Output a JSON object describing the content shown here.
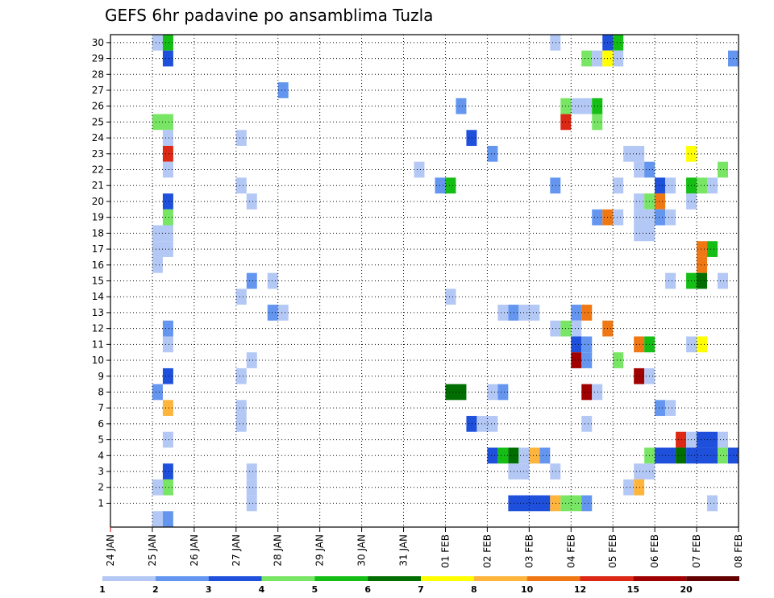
{
  "chart_data": {
    "type": "heatmap",
    "title": "GEFS 6hr padavine po ansamblima Tuzla",
    "xlabel": "",
    "ylabel": "",
    "x_tick_labels": [
      "24 JAN",
      "25 JAN",
      "26 JAN",
      "27 JAN",
      "28 JAN",
      "29 JAN",
      "30 JAN",
      "31 JAN",
      "01 FEB",
      "02 FEB",
      "03 FEB",
      "04 FEB",
      "05 FEB",
      "06 FEB",
      "07 FEB",
      "08 FEB"
    ],
    "x_range_days": [
      0,
      15
    ],
    "y_range": [
      0,
      30
    ],
    "y_ticks": [
      1,
      2,
      3,
      4,
      5,
      6,
      7,
      8,
      9,
      10,
      11,
      12,
      13,
      14,
      15,
      16,
      17,
      18,
      19,
      20,
      21,
      22,
      23,
      24,
      25,
      26,
      27,
      28,
      29,
      30
    ],
    "grid": true,
    "colorbar": {
      "labels": [
        "1",
        "2",
        "3",
        "4",
        "5",
        "6",
        "7",
        "8",
        "10",
        "12",
        "15",
        "20"
      ],
      "colors": [
        "#b4c8f5",
        "#6496f0",
        "#1e50dc",
        "#78e664",
        "#14be14",
        "#006e00",
        "#ffff00",
        "#ffb43c",
        "#f07814",
        "#dc2814",
        "#a00000",
        "#640000"
      ]
    },
    "cells_note": "each cell: [member (y), time step start in days from 24 JAN, duration in days, level index into colorbar.colors]",
    "cells": [
      [
        30,
        1.0,
        0.25,
        0
      ],
      [
        30,
        1.25,
        0.25,
        4
      ],
      [
        30,
        10.5,
        0.25,
        0
      ],
      [
        30,
        11.75,
        0.25,
        2
      ],
      [
        30,
        12.0,
        0.25,
        4
      ],
      [
        29,
        1.25,
        0.25,
        2
      ],
      [
        29,
        11.25,
        0.25,
        3
      ],
      [
        29,
        11.5,
        0.25,
        0
      ],
      [
        29,
        11.75,
        0.25,
        6
      ],
      [
        29,
        12.0,
        0.25,
        0
      ],
      [
        29,
        14.75,
        0.25,
        1
      ],
      [
        27,
        4.0,
        0.25,
        1
      ],
      [
        26,
        8.25,
        0.25,
        1
      ],
      [
        26,
        10.75,
        0.25,
        3
      ],
      [
        26,
        11.0,
        0.5,
        0
      ],
      [
        26,
        11.5,
        0.25,
        4
      ],
      [
        25,
        1.0,
        0.5,
        3
      ],
      [
        25,
        10.75,
        0.25,
        9
      ],
      [
        25,
        11.5,
        0.25,
        3
      ],
      [
        24,
        1.25,
        0.25,
        0
      ],
      [
        24,
        3.0,
        0.25,
        0
      ],
      [
        24,
        8.5,
        0.25,
        2
      ],
      [
        23,
        1.25,
        0.25,
        9
      ],
      [
        23,
        9.0,
        0.25,
        1
      ],
      [
        23,
        12.25,
        0.5,
        0
      ],
      [
        23,
        13.75,
        0.25,
        6
      ],
      [
        22,
        1.25,
        0.25,
        0
      ],
      [
        22,
        7.25,
        0.25,
        0
      ],
      [
        22,
        12.5,
        0.25,
        0
      ],
      [
        22,
        12.75,
        0.25,
        1
      ],
      [
        22,
        14.5,
        0.25,
        3
      ],
      [
        21,
        3.0,
        0.25,
        0
      ],
      [
        21,
        7.75,
        0.25,
        1
      ],
      [
        21,
        8.0,
        0.25,
        4
      ],
      [
        21,
        10.5,
        0.25,
        1
      ],
      [
        21,
        12.0,
        0.25,
        0
      ],
      [
        21,
        13.0,
        0.25,
        2
      ],
      [
        21,
        13.25,
        0.25,
        0
      ],
      [
        21,
        13.75,
        0.25,
        4
      ],
      [
        21,
        14.0,
        0.25,
        3
      ],
      [
        21,
        14.25,
        0.25,
        0
      ],
      [
        20,
        1.25,
        0.25,
        2
      ],
      [
        20,
        3.25,
        0.25,
        0
      ],
      [
        20,
        12.5,
        0.25,
        0
      ],
      [
        20,
        12.75,
        0.25,
        3
      ],
      [
        20,
        13.0,
        0.25,
        8
      ],
      [
        20,
        13.75,
        0.25,
        0
      ],
      [
        19,
        1.25,
        0.25,
        3
      ],
      [
        19,
        11.5,
        0.25,
        1
      ],
      [
        19,
        11.75,
        0.25,
        8
      ],
      [
        19,
        12.0,
        0.25,
        0
      ],
      [
        19,
        12.5,
        0.5,
        0
      ],
      [
        19,
        13.0,
        0.25,
        1
      ],
      [
        19,
        13.25,
        0.25,
        0
      ],
      [
        18,
        1.0,
        0.5,
        0
      ],
      [
        18,
        12.5,
        0.5,
        0
      ],
      [
        17,
        1.0,
        0.5,
        0
      ],
      [
        17,
        14.0,
        0.25,
        8
      ],
      [
        17,
        14.25,
        0.25,
        4
      ],
      [
        16,
        1.0,
        0.25,
        0
      ],
      [
        16,
        14.0,
        0.25,
        8
      ],
      [
        15,
        3.25,
        0.25,
        1
      ],
      [
        15,
        3.75,
        0.25,
        0
      ],
      [
        15,
        13.25,
        0.25,
        0
      ],
      [
        15,
        13.75,
        0.25,
        4
      ],
      [
        15,
        14.0,
        0.25,
        5
      ],
      [
        15,
        14.5,
        0.25,
        0
      ],
      [
        14,
        3.0,
        0.25,
        0
      ],
      [
        14,
        8.0,
        0.25,
        0
      ],
      [
        13,
        3.75,
        0.25,
        1
      ],
      [
        13,
        4.0,
        0.25,
        0
      ],
      [
        13,
        9.25,
        0.25,
        0
      ],
      [
        13,
        9.5,
        0.25,
        1
      ],
      [
        13,
        9.75,
        0.5,
        0
      ],
      [
        13,
        11.0,
        0.25,
        1
      ],
      [
        13,
        11.25,
        0.25,
        8
      ],
      [
        12,
        1.25,
        0.25,
        1
      ],
      [
        12,
        10.5,
        0.25,
        0
      ],
      [
        12,
        10.75,
        0.25,
        3
      ],
      [
        12,
        11.0,
        0.25,
        0
      ],
      [
        12,
        11.75,
        0.25,
        8
      ],
      [
        11,
        1.25,
        0.25,
        0
      ],
      [
        11,
        11.0,
        0.25,
        2
      ],
      [
        11,
        11.25,
        0.25,
        1
      ],
      [
        11,
        12.5,
        0.25,
        8
      ],
      [
        11,
        12.75,
        0.25,
        4
      ],
      [
        11,
        13.75,
        0.25,
        0
      ],
      [
        11,
        14.0,
        0.25,
        6
      ],
      [
        10,
        3.25,
        0.25,
        0
      ],
      [
        10,
        11.0,
        0.25,
        10
      ],
      [
        10,
        11.25,
        0.25,
        1
      ],
      [
        10,
        12.0,
        0.25,
        3
      ],
      [
        9,
        1.25,
        0.25,
        2
      ],
      [
        9,
        3.0,
        0.25,
        0
      ],
      [
        9,
        12.5,
        0.25,
        10
      ],
      [
        9,
        12.75,
        0.25,
        0
      ],
      [
        8,
        1.0,
        0.25,
        1
      ],
      [
        8,
        8.0,
        0.5,
        5
      ],
      [
        8,
        9.0,
        0.25,
        0
      ],
      [
        8,
        9.25,
        0.25,
        1
      ],
      [
        8,
        11.25,
        0.25,
        10
      ],
      [
        8,
        11.5,
        0.25,
        0
      ],
      [
        7,
        1.25,
        0.25,
        7
      ],
      [
        7,
        3.0,
        0.25,
        0
      ],
      [
        7,
        13.0,
        0.25,
        1
      ],
      [
        7,
        13.25,
        0.25,
        0
      ],
      [
        6,
        3.0,
        0.25,
        0
      ],
      [
        6,
        8.5,
        0.25,
        2
      ],
      [
        6,
        8.75,
        0.5,
        0
      ],
      [
        6,
        11.25,
        0.25,
        0
      ],
      [
        5,
        1.25,
        0.25,
        0
      ],
      [
        5,
        13.5,
        0.25,
        9
      ],
      [
        5,
        13.75,
        0.25,
        0
      ],
      [
        5,
        14.0,
        0.5,
        2
      ],
      [
        5,
        14.5,
        0.25,
        0
      ],
      [
        4,
        9.0,
        0.25,
        2
      ],
      [
        4,
        9.25,
        0.25,
        4
      ],
      [
        4,
        9.5,
        0.25,
        5
      ],
      [
        4,
        9.75,
        0.25,
        0
      ],
      [
        4,
        10.0,
        0.25,
        7
      ],
      [
        4,
        10.25,
        0.25,
        1
      ],
      [
        4,
        12.75,
        0.25,
        3
      ],
      [
        4,
        13.0,
        0.5,
        2
      ],
      [
        4,
        13.5,
        0.25,
        5
      ],
      [
        4,
        13.75,
        0.75,
        2
      ],
      [
        4,
        14.5,
        0.25,
        3
      ],
      [
        4,
        14.75,
        0.25,
        2
      ],
      [
        3,
        1.25,
        0.25,
        2
      ],
      [
        3,
        3.25,
        0.25,
        0
      ],
      [
        3,
        9.5,
        0.5,
        0
      ],
      [
        3,
        10.5,
        0.25,
        0
      ],
      [
        3,
        12.5,
        0.5,
        0
      ],
      [
        2,
        1.0,
        0.25,
        0
      ],
      [
        2,
        1.25,
        0.25,
        3
      ],
      [
        2,
        3.25,
        0.25,
        0
      ],
      [
        2,
        12.25,
        0.25,
        0
      ],
      [
        2,
        12.5,
        0.25,
        7
      ],
      [
        1,
        3.25,
        0.25,
        0
      ],
      [
        1,
        9.5,
        1.0,
        2
      ],
      [
        1,
        10.5,
        0.25,
        7
      ],
      [
        1,
        10.75,
        0.25,
        3
      ],
      [
        1,
        11.0,
        0.25,
        3
      ],
      [
        1,
        11.25,
        0.25,
        1
      ],
      [
        1,
        14.25,
        0.25,
        0
      ],
      [
        0,
        1.0,
        0.25,
        0
      ],
      [
        0,
        1.25,
        0.25,
        1
      ]
    ]
  }
}
